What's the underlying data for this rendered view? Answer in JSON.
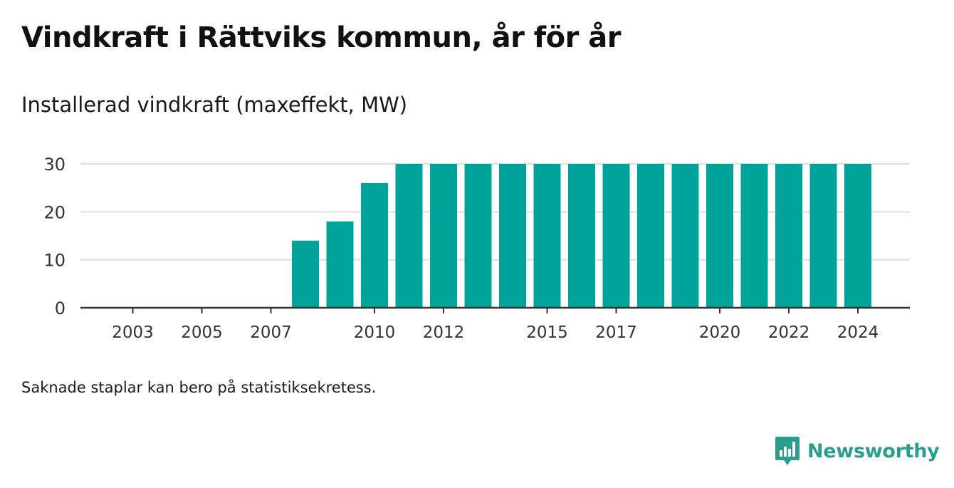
{
  "title": "Vindkraft i Rättviks kommun, år för år",
  "subtitle": "Installerad vindkraft (maxeffekt, MW)",
  "footnote": "Saknade staplar kan bero på statistiksekretess.",
  "brand": {
    "name": "Newsworthy",
    "logo_icon": "newsworthy-logo-icon"
  },
  "colors": {
    "bar": "#00a39a",
    "grid": "#dddddd",
    "axis": "#333333",
    "brand": "#2a9d8f"
  },
  "chart_data": {
    "type": "bar",
    "categories": [
      "2003",
      "2004",
      "2005",
      "2006",
      "2007",
      "2008",
      "2009",
      "2010",
      "2011",
      "2012",
      "2013",
      "2014",
      "2015",
      "2016",
      "2017",
      "2018",
      "2019",
      "2020",
      "2021",
      "2022",
      "2023",
      "2024"
    ],
    "values": [
      null,
      null,
      null,
      null,
      null,
      14,
      18,
      26,
      30,
      30,
      30,
      30,
      30,
      30,
      30,
      30,
      30,
      30,
      30,
      30,
      30,
      30
    ],
    "x_tick_labels": [
      "2003",
      "2005",
      "2007",
      "2010",
      "2012",
      "2015",
      "2017",
      "2020",
      "2022",
      "2024"
    ],
    "y_ticks": [
      0,
      10,
      20,
      30
    ],
    "ylim": [
      0,
      30
    ],
    "grid": true,
    "legend": "none"
  }
}
